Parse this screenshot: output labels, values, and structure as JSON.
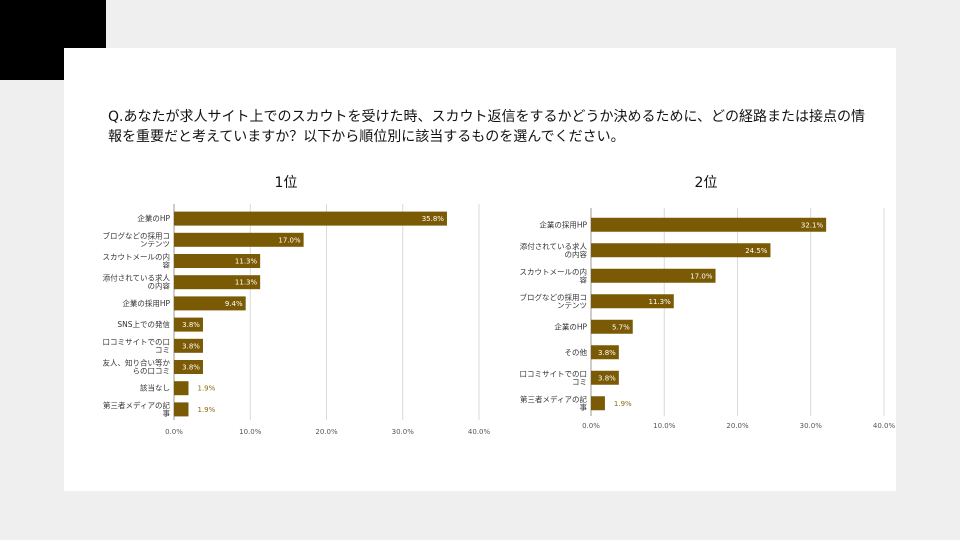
{
  "question": "Q.あなたが求人サイト上でのスカウトを受けた時、スカウト返信をするかどうか決めるために、どの経路または接点の情報を重要だと考えていますか？以下から順位別に該当するものを選んでください。",
  "colors": {
    "bar": "#7a5a04",
    "grid": "#d9d9d9",
    "axis": "#999999"
  },
  "chart_data": [
    {
      "type": "bar",
      "orientation": "horizontal",
      "title": "1位",
      "categories": [
        [
          "企業のHP"
        ],
        [
          "ブログなどの採用コ",
          "ンテンツ"
        ],
        [
          "スカウトメールの内",
          "容"
        ],
        [
          "添付されている求人",
          "の内容"
        ],
        [
          "企業の採用HP"
        ],
        [
          "SNS上での発信"
        ],
        [
          "口コミサイトでの口",
          "コミ"
        ],
        [
          "友人、知り合い等か",
          "らの口コミ"
        ],
        [
          "該当なし"
        ],
        [
          "第三者メディアの記",
          "事"
        ]
      ],
      "values": [
        35.8,
        17.0,
        11.3,
        11.3,
        9.4,
        3.8,
        3.8,
        3.8,
        1.9,
        1.9
      ],
      "value_labels": [
        "35.8%",
        "17.0%",
        "11.3%",
        "11.3%",
        "9.4%",
        "3.8%",
        "3.8%",
        "3.8%",
        "1.9%",
        "1.9%"
      ],
      "xlim": [
        0,
        40
      ],
      "ticks": [
        "0.0%",
        "10.0%",
        "20.0%",
        "30.0%",
        "40.0%"
      ],
      "grid": true
    },
    {
      "type": "bar",
      "orientation": "horizontal",
      "title": "2位",
      "categories": [
        [
          "企業の採用HP"
        ],
        [
          "添付されている求人",
          "の内容"
        ],
        [
          "スカウトメールの内",
          "容"
        ],
        [
          "ブログなどの採用コ",
          "ンテンツ"
        ],
        [
          "企業のHP"
        ],
        [
          "その他"
        ],
        [
          "口コミサイトでの口",
          "コミ"
        ],
        [
          "第三者メディアの記",
          "事"
        ]
      ],
      "values": [
        32.1,
        24.5,
        17.0,
        11.3,
        5.7,
        3.8,
        3.8,
        1.9
      ],
      "value_labels": [
        "32.1%",
        "24.5%",
        "17.0%",
        "11.3%",
        "5.7%",
        "3.8%",
        "3.8%",
        "1.9%"
      ],
      "xlim": [
        0,
        40
      ],
      "ticks": [
        "0.0%",
        "10.0%",
        "20.0%",
        "30.0%",
        "40.0%"
      ],
      "grid": true
    }
  ]
}
